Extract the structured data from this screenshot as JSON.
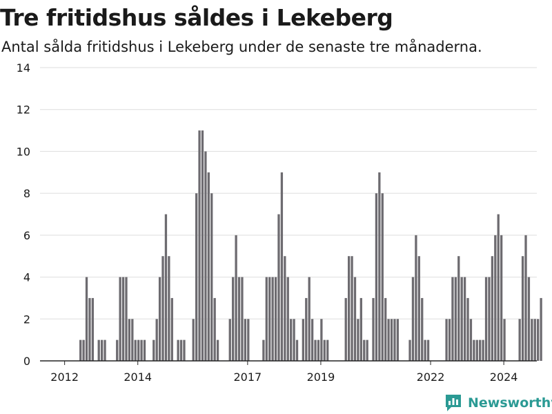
{
  "header": {
    "title": "Tre fritidshus såldes i Lekeberg",
    "subtitle": "Antal sålda fritidshus i Lekeberg under de senaste tre månaderna."
  },
  "brand": {
    "name": "Newsworthy",
    "color": "#2b9a94",
    "icon": "bar-chart-logo-icon"
  },
  "colors": {
    "bar": "#6d6b70",
    "highlight": "#1a9c98",
    "grid": "#dddddd",
    "axis": "#222222",
    "text": "#1a1a1a"
  },
  "chart_data": {
    "type": "bar",
    "ylim": [
      0,
      14
    ],
    "yticks": [
      0,
      2,
      4,
      6,
      8,
      10,
      12,
      14
    ],
    "xticks": [
      "2012",
      "2014",
      "2017",
      "2019",
      "2022",
      "2024"
    ],
    "grid": true,
    "highlight_label": "3",
    "values": [
      0,
      0,
      0,
      0,
      0,
      0,
      0,
      0,
      0,
      0,
      0,
      0,
      1,
      1,
      4,
      3,
      3,
      0,
      1,
      1,
      1,
      0,
      0,
      0,
      1,
      4,
      4,
      4,
      2,
      2,
      1,
      1,
      1,
      1,
      0,
      0,
      1,
      2,
      4,
      5,
      7,
      5,
      3,
      0,
      1,
      1,
      1,
      0,
      0,
      2,
      8,
      11,
      11,
      10,
      9,
      8,
      3,
      1,
      0,
      0,
      0,
      2,
      4,
      6,
      4,
      4,
      2,
      2,
      0,
      0,
      0,
      0,
      1,
      4,
      4,
      4,
      4,
      7,
      9,
      5,
      4,
      2,
      2,
      1,
      0,
      2,
      3,
      4,
      2,
      1,
      1,
      2,
      1,
      1,
      0,
      0,
      0,
      0,
      0,
      3,
      5,
      5,
      4,
      2,
      3,
      1,
      1,
      0,
      3,
      8,
      9,
      8,
      3,
      2,
      2,
      2,
      2,
      0,
      0,
      0,
      1,
      4,
      6,
      5,
      3,
      1,
      1,
      0,
      0,
      0,
      0,
      0,
      2,
      2,
      4,
      4,
      5,
      4,
      4,
      3,
      2,
      1,
      1,
      1,
      1,
      4,
      4,
      5,
      6,
      7,
      6,
      2,
      0,
      0,
      0,
      0,
      2,
      5,
      6,
      4,
      2,
      2,
      2,
      3
    ],
    "highlight_index": 155
  }
}
